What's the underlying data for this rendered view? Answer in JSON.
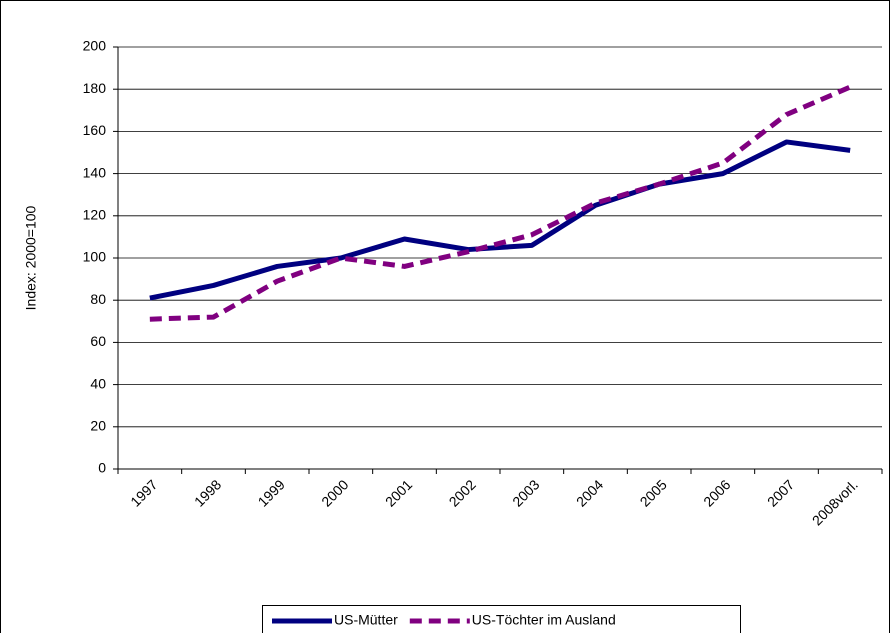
{
  "chart_data": {
    "type": "line",
    "y_label": "Index: 2000=100",
    "categories": [
      "1997",
      "1998",
      "1999",
      "2000",
      "2001",
      "2002",
      "2003",
      "2004",
      "2005",
      "2006",
      "2007",
      "2008vorl."
    ],
    "series": [
      {
        "name": "US-Mütter",
        "color": "#000080",
        "dashed": false,
        "values": [
          81,
          87,
          96,
          100,
          109,
          104,
          106,
          125,
          135,
          140,
          155,
          151
        ]
      },
      {
        "name": "US-Töchter im Ausland",
        "color": "#800080",
        "dashed": true,
        "values": [
          71,
          72,
          89,
          100,
          96,
          103,
          111,
          126,
          135,
          145,
          168,
          181
        ]
      }
    ],
    "ylim": [
      0,
      200
    ],
    "yticks": [
      0,
      20,
      40,
      60,
      80,
      100,
      120,
      140,
      160,
      180,
      200
    ],
    "grid": true,
    "legend": "bottom"
  }
}
